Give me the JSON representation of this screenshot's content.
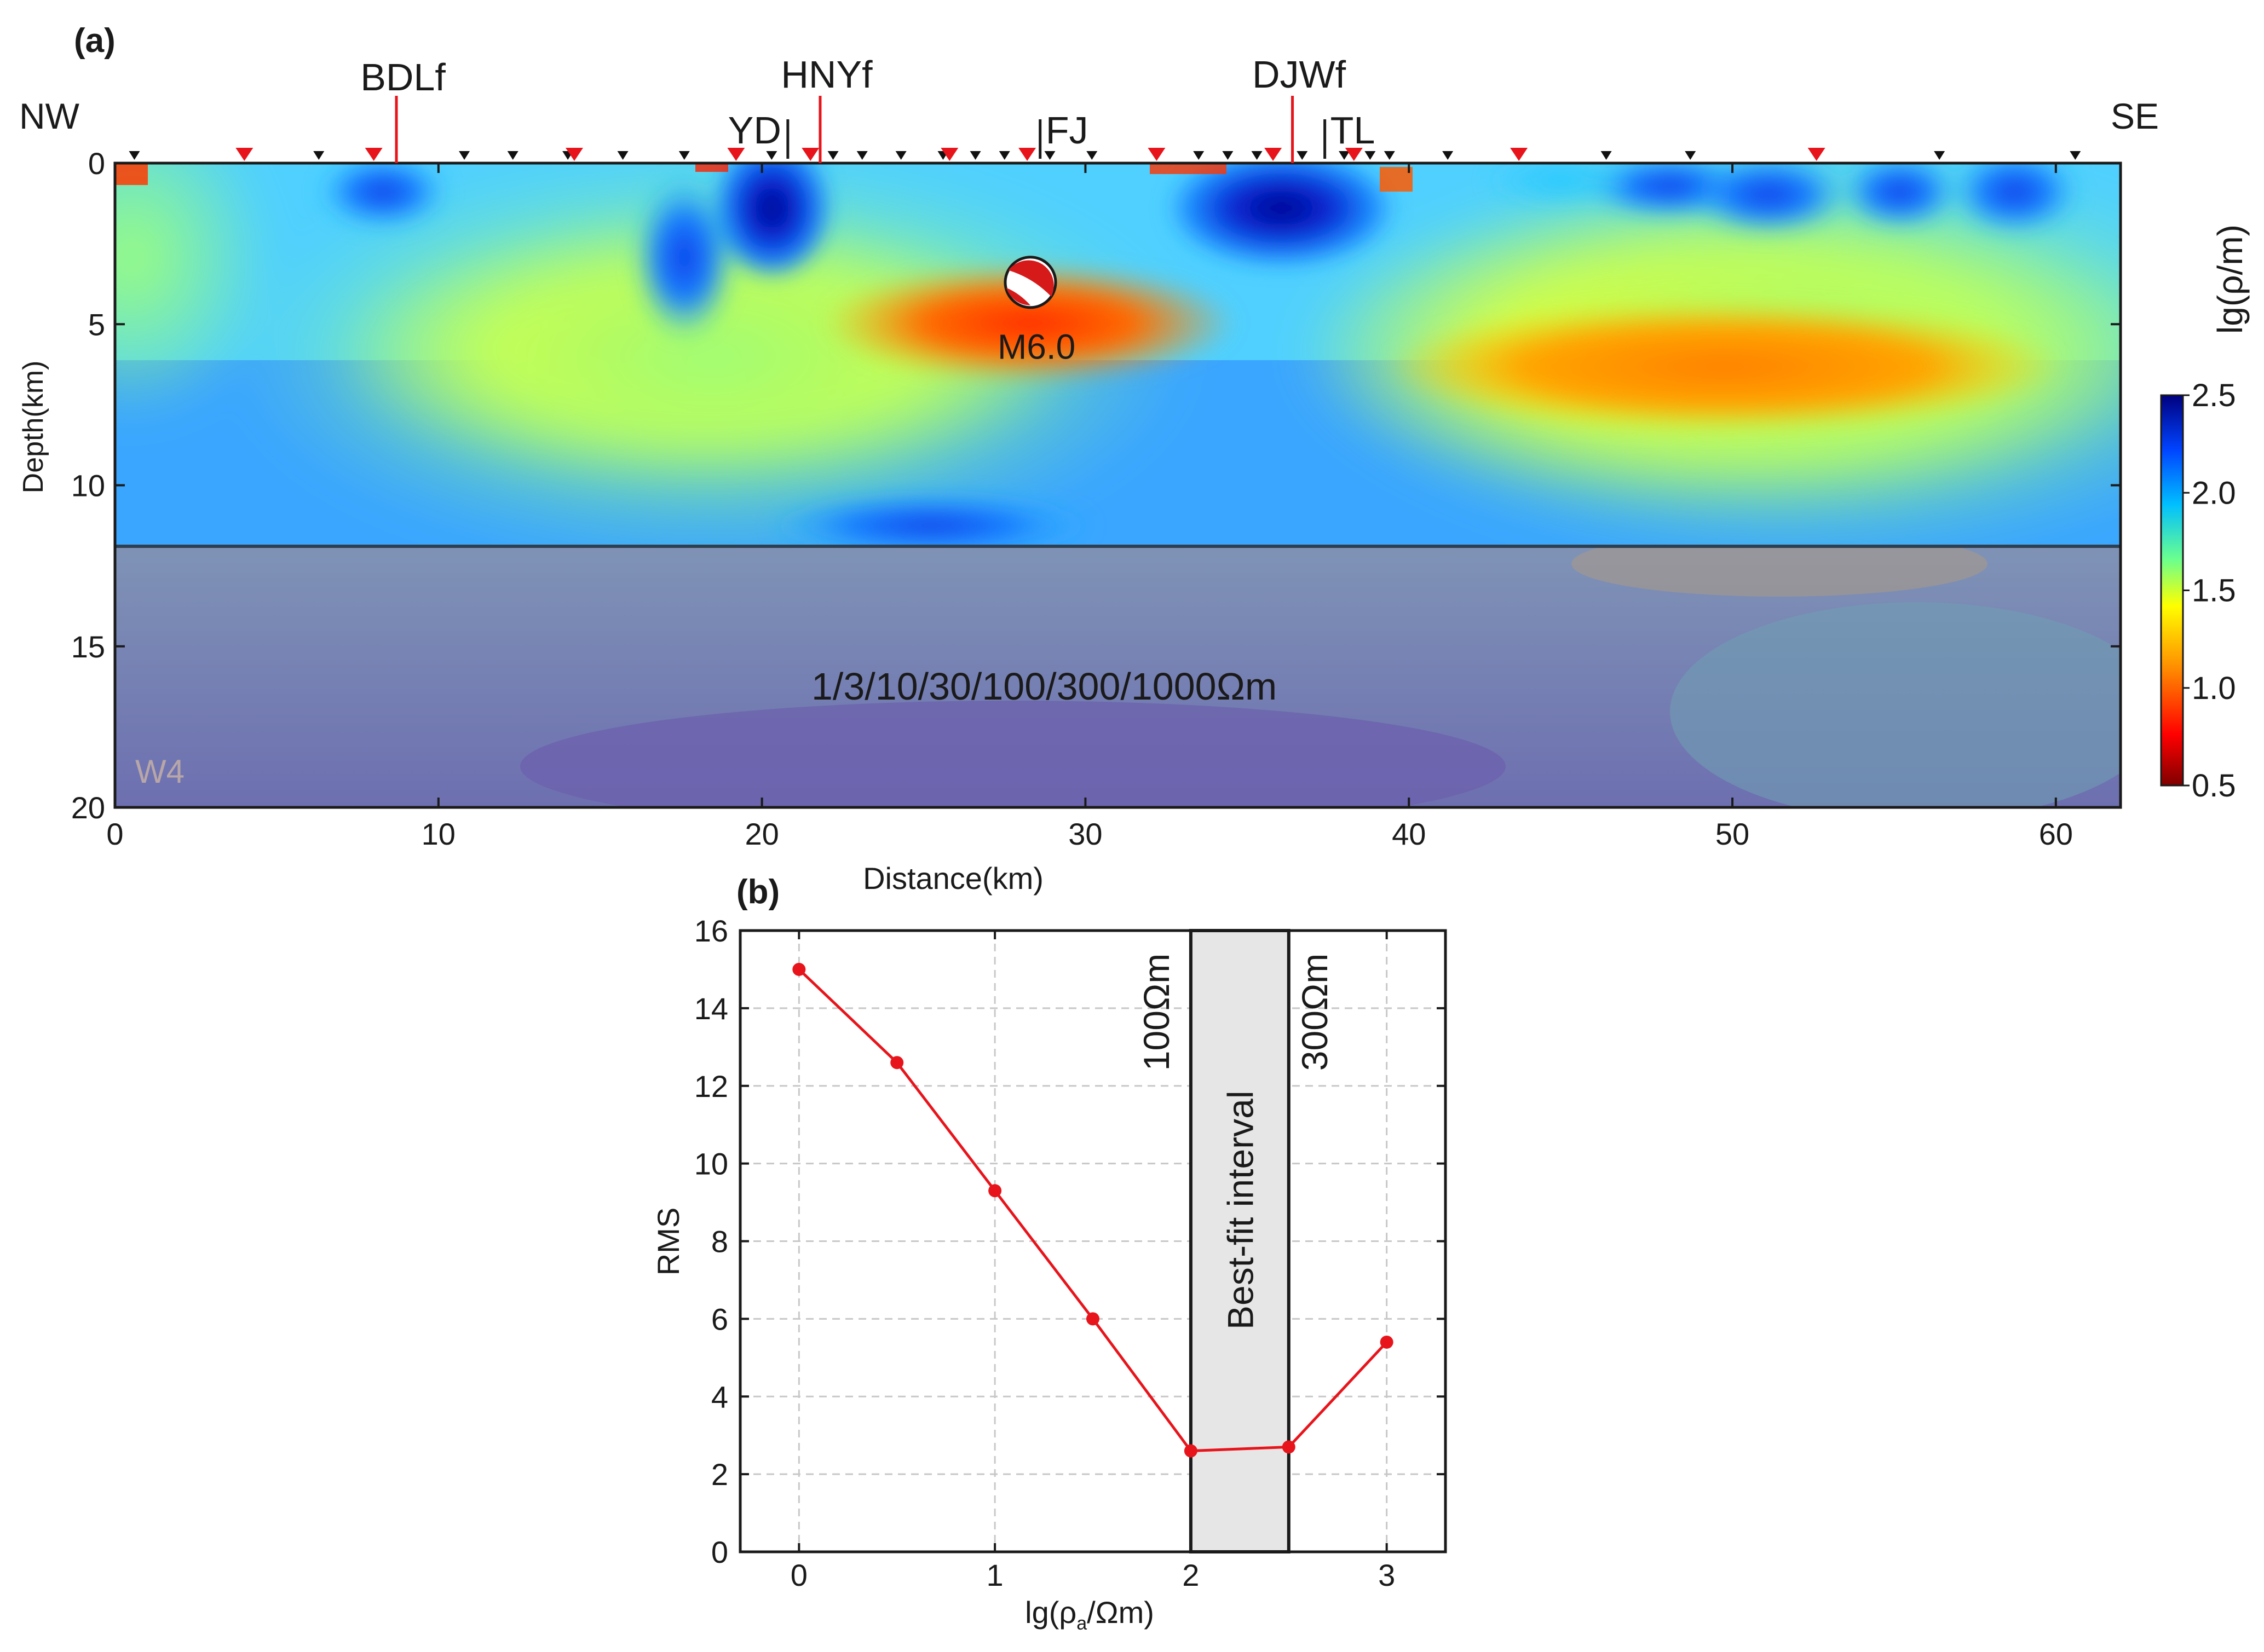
{
  "chart_data": [
    {
      "type": "heatmap",
      "panel_label": "(a)",
      "title": "",
      "xlabel": "Distance(km)",
      "ylabel": "Depth(km)",
      "xlim": [
        0,
        62
      ],
      "ylim": [
        20,
        0
      ],
      "x_ticks": [
        "0",
        "10",
        "20",
        "30",
        "40",
        "50",
        "60"
      ],
      "y_ticks": [
        "0",
        "5",
        "10",
        "15",
        "20"
      ],
      "direction_labels": {
        "left": "NW",
        "right": "SE"
      },
      "profile_name": "W4",
      "section_note": "1/3/10/30/100/300/1000Ωm",
      "masked_depth_below_km": 12,
      "earthquake": {
        "label": "M6.0",
        "distance_km": 28.3,
        "depth_km": 3.7
      },
      "faults": [
        {
          "name": "BDLf",
          "distance_km": 8.7
        },
        {
          "name": "YD",
          "distance_km": 20.8
        },
        {
          "name": "HNYf",
          "distance_km": 21.8
        },
        {
          "name": "FJ",
          "distance_km": 28.6
        },
        {
          "name": "DJWf",
          "distance_km": 36.4
        },
        {
          "name": "TL",
          "distance_km": 37.4
        }
      ],
      "stations_black_km": [
        0.6,
        6.3,
        10.8,
        12.3,
        14.0,
        15.7,
        17.6,
        20.3,
        22.2,
        23.1,
        24.3,
        25.6,
        26.6,
        27.5,
        28.9,
        30.2,
        33.5,
        34.4,
        35.3,
        36.7,
        38.0,
        38.8,
        39.4,
        41.2,
        46.1,
        48.7,
        56.4,
        60.6
      ],
      "stations_red_km": [
        4.0,
        8.0,
        14.2,
        19.2,
        21.5,
        25.8,
        28.2,
        32.2,
        35.8,
        38.3,
        43.4,
        52.6
      ],
      "colorbar": {
        "label": "lg(ρ/m)",
        "range": [
          0.5,
          2.5
        ],
        "ticks": [
          "0.5",
          "1.0",
          "1.5",
          "2.0",
          "2.5"
        ],
        "colors": [
          "#7f0000",
          "#ff0000",
          "#ff8c00",
          "#ffff00",
          "#6aff8f",
          "#00bfff",
          "#0044ff",
          "#00007f"
        ]
      },
      "anomalies": [
        {
          "type": "conductor",
          "center_km": [
            28.5,
            5.3
          ],
          "lg_rho": 0.95
        },
        {
          "type": "conductor",
          "center_km": [
            49,
            6.5
          ],
          "lg_rho": 1.15
        },
        {
          "type": "resistor",
          "center_km": [
            36,
            1.2
          ],
          "lg_rho": 2.6
        },
        {
          "type": "resistor",
          "center_km": [
            20.3,
            1.6
          ],
          "lg_rho": 2.4
        },
        {
          "type": "resistor",
          "center_km": [
            8.2,
            1.1
          ],
          "lg_rho": 2.2
        }
      ]
    },
    {
      "type": "line",
      "panel_label": "(b)",
      "title": "",
      "xlabel": "lg(ρa/Ωm)",
      "ylabel": "RMS",
      "xlim": [
        -0.3,
        3.3
      ],
      "ylim": [
        0,
        16
      ],
      "x_ticks": [
        "0",
        "1",
        "2",
        "3"
      ],
      "y_ticks": [
        "0",
        "2",
        "4",
        "6",
        "8",
        "10",
        "12",
        "14",
        "16"
      ],
      "grid": true,
      "series": [
        {
          "name": "RMS",
          "color": "#e8141b",
          "x": [
            0,
            0.5,
            1,
            1.5,
            2,
            2.5,
            3
          ],
          "y": [
            15.0,
            12.6,
            9.3,
            6.0,
            2.6,
            2.7,
            5.4
          ]
        }
      ],
      "best_fit_interval": {
        "x_range": [
          2,
          2.5
        ],
        "label": "Best-fit interval",
        "left_label": "100Ωm",
        "right_label": "300Ωm"
      }
    }
  ]
}
